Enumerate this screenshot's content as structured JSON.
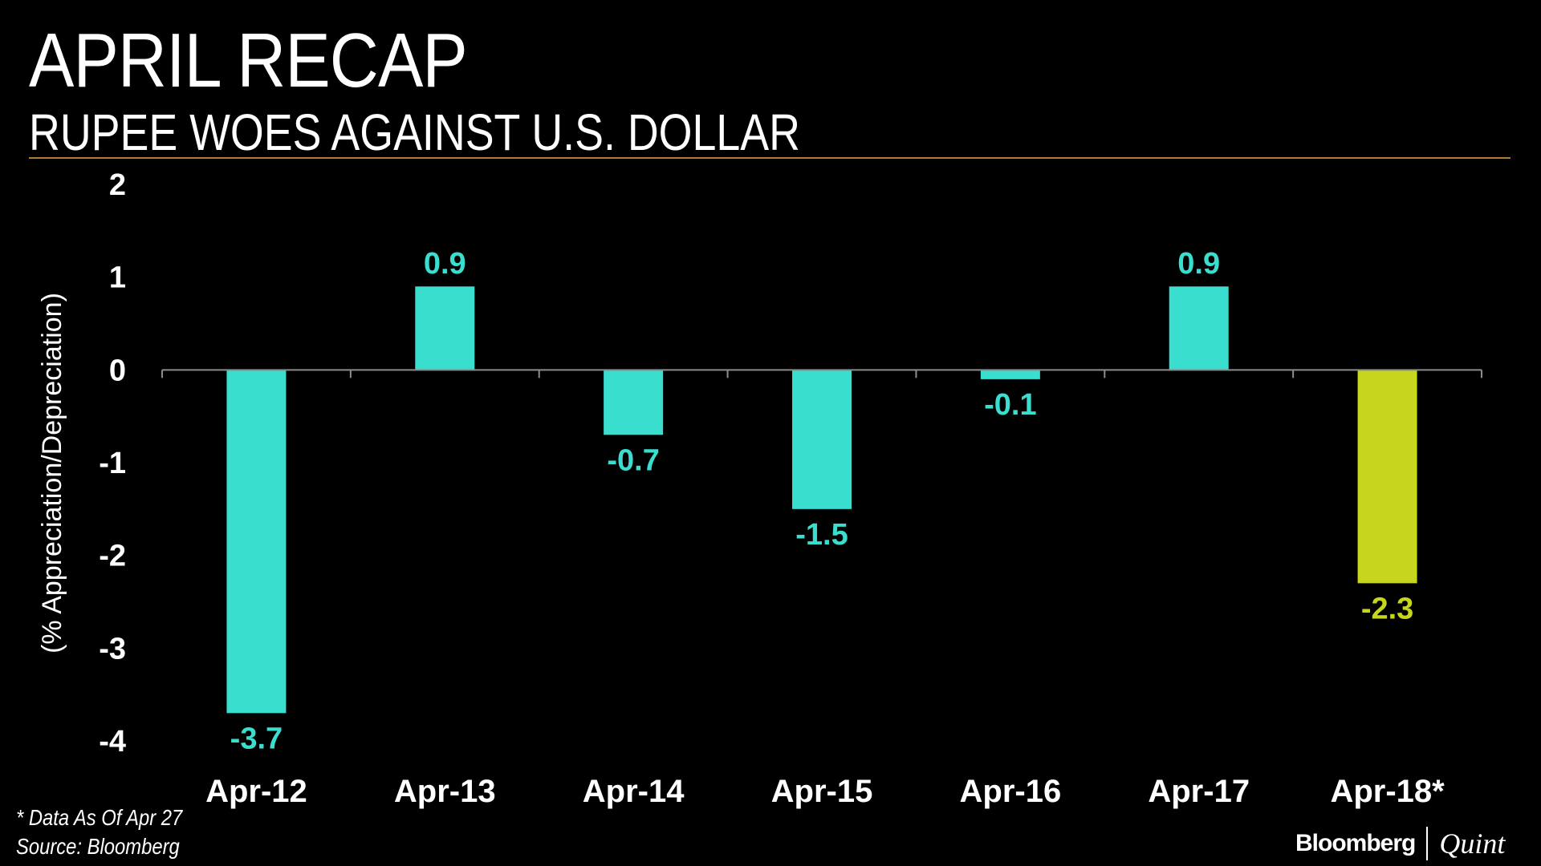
{
  "header": {
    "title": "APRIL RECAP",
    "subtitle": "RUPEE WOES AGAINST U.S. DOLLAR"
  },
  "chart_data": {
    "type": "bar",
    "categories": [
      "Apr-12",
      "Apr-13",
      "Apr-14",
      "Apr-15",
      "Apr-16",
      "Apr-17",
      "Apr-18*"
    ],
    "values": [
      -3.7,
      0.9,
      -0.7,
      -1.5,
      -0.1,
      0.9,
      -2.3
    ],
    "data_labels": [
      "-3.7",
      "0.9",
      "-0.7",
      "-1.5",
      "-0.1",
      "0.9",
      "-2.3"
    ],
    "ylabel": "(% Appreciation/Depreciation)",
    "ylim": [
      -4,
      2
    ],
    "yticks": [
      "2",
      "1",
      "0",
      "-1",
      "-2",
      "-3",
      "-4"
    ],
    "ytick_values": [
      2,
      1,
      0,
      -1,
      -2,
      -3,
      -4
    ],
    "grid": false,
    "colors": {
      "default": "#3adecf",
      "highlight": "#c6d61e",
      "highlight_index": 6,
      "axis": "#8c8c8c",
      "tick_text": "#ffffff"
    }
  },
  "footer": {
    "note": "* Data As Of Apr 27",
    "source": "Source: Bloomberg",
    "brand_left": "Bloomberg",
    "brand_right": "Quint"
  }
}
